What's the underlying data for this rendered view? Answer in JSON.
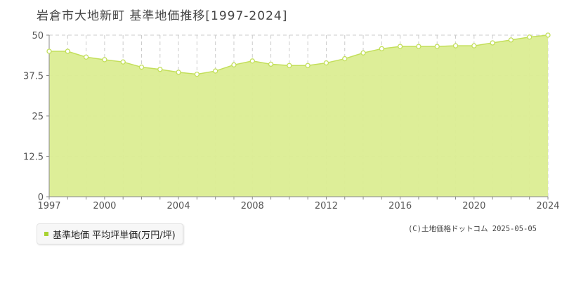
{
  "title": "岩倉市大地新町 基準地価推移[1997-2024]",
  "legend_label": "基準地価 平均坪単価(万円/坪)",
  "credit": "(C)土地価格ドットコム 2025-05-05",
  "colors": {
    "area_fill": "#dbed92",
    "line": "#c3df5a",
    "marker_fill": "#ffffff",
    "grid": "#cccccc",
    "axis": "#888888",
    "legend_swatch": "#a8d232"
  },
  "chart_data": {
    "type": "area",
    "title": "岩倉市大地新町 基準地価推移[1997-2024]",
    "xlabel": "",
    "ylabel": "",
    "x": [
      1997,
      1998,
      1999,
      2000,
      2001,
      2002,
      2003,
      2004,
      2005,
      2006,
      2007,
      2008,
      2009,
      2010,
      2011,
      2012,
      2013,
      2014,
      2015,
      2016,
      2017,
      2018,
      2019,
      2020,
      2021,
      2022,
      2023,
      2024
    ],
    "series": [
      {
        "name": "基準地価 平均坪単価(万円/坪)",
        "values": [
          45.0,
          45.0,
          43.2,
          42.4,
          41.7,
          40.1,
          39.4,
          38.5,
          37.9,
          38.9,
          40.8,
          42.0,
          41.0,
          40.6,
          40.6,
          41.4,
          42.7,
          44.5,
          45.8,
          46.5,
          46.5,
          46.5,
          46.7,
          46.7,
          47.6,
          48.5,
          49.4,
          50.0
        ]
      }
    ],
    "xlim": [
      1997,
      2024
    ],
    "ylim": [
      0,
      50
    ],
    "y_ticks": [
      0,
      12.5,
      25,
      37.5,
      50
    ],
    "y_tick_labels": [
      "0",
      "12.5",
      "25",
      "37.5",
      "50"
    ],
    "x_tick_labels": [
      "1997",
      "2000",
      "2004",
      "2008",
      "2012",
      "2016",
      "2020",
      "2024"
    ],
    "grid": true,
    "legend_position": "bottom-left"
  }
}
